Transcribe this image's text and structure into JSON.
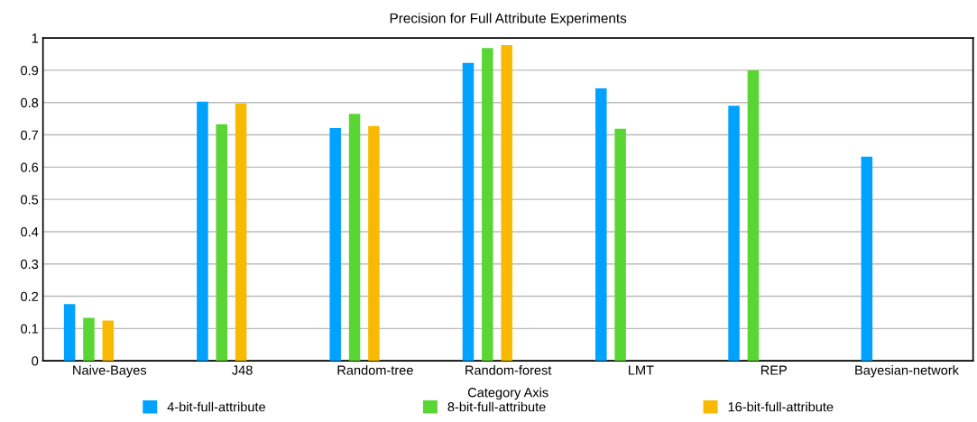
{
  "chart_data": {
    "type": "bar",
    "title": "Precision for Full Attribute Experiments",
    "xlabel": "Category Axis",
    "categories": [
      "Naive-Bayes",
      "J48",
      "Random-tree",
      "Random-forest",
      "LMT",
      "REP",
      "Bayesian-network"
    ],
    "series": [
      {
        "name": "4-bit-full-attribute",
        "color": "#00a2ff",
        "values": [
          0.176,
          0.803,
          0.721,
          0.923,
          0.844,
          0.79,
          0.632
        ]
      },
      {
        "name": "8-bit-full-attribute",
        "color": "#5ad634",
        "values": [
          0.133,
          0.733,
          0.765,
          0.969,
          0.719,
          0.9,
          null
        ]
      },
      {
        "name": "16-bit-full-attribute",
        "color": "#f8ba00",
        "values": [
          0.125,
          0.797,
          0.727,
          0.978,
          null,
          null,
          null
        ]
      }
    ],
    "ylim": [
      0,
      1
    ],
    "yticks": [
      0,
      0.1,
      0.2,
      0.3,
      0.4,
      0.5,
      0.6,
      0.7,
      0.8,
      0.9,
      1
    ],
    "grid": "y",
    "legend": "bottom"
  }
}
